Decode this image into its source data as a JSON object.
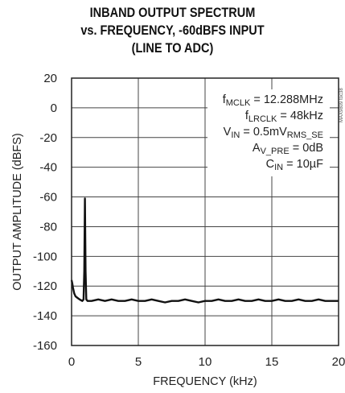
{
  "chart_data": {
    "type": "line",
    "title_lines": [
      "INBAND OUTPUT SPECTRUM",
      "vs. FREQUENCY, -60dBFS INPUT",
      "(LINE TO ADC)"
    ],
    "xlabel": "FREQUENCY (kHz)",
    "ylabel": "OUTPUT AMPLITUDE (dBFS)",
    "xlim": [
      0,
      20
    ],
    "ylim": [
      -160,
      20
    ],
    "xticks": [
      "0",
      "5",
      "10",
      "15",
      "20"
    ],
    "yticks": [
      "20",
      "0",
      "-20",
      "-40",
      "-60",
      "-80",
      "-100",
      "-120",
      "-140",
      "-160"
    ],
    "grid": true,
    "legend": "none",
    "side_code": "MAX9809 toc38",
    "annotations": [
      {
        "main": "f",
        "sub": "MCLK",
        "rest": " = 12.288MHz"
      },
      {
        "main": "f",
        "sub": "LRCLK",
        "rest": " = 48kHz"
      },
      {
        "main": "V",
        "sub": "IN",
        "rest": " = 0.5mV",
        "sub2": "RMS_SE"
      },
      {
        "main": "A",
        "sub": "V_PRE",
        "rest": " = 0dB"
      },
      {
        "main": "C",
        "sub": "IN",
        "rest": " = 10µF"
      }
    ],
    "series": [
      {
        "x": [
          0.0,
          0.05,
          0.1,
          0.2,
          0.3,
          0.45,
          0.6,
          0.8,
          0.9,
          0.95,
          1.0,
          1.05,
          1.1,
          1.2,
          1.5,
          2,
          2.5,
          3,
          3.5,
          4,
          4.5,
          5,
          5.5,
          6,
          6.5,
          7,
          7.5,
          8,
          8.5,
          9,
          9.5,
          10,
          10.5,
          11,
          11.5,
          12,
          12.5,
          13,
          13.5,
          14,
          14.5,
          15,
          15.5,
          16,
          16.5,
          17,
          17.5,
          18,
          18.5,
          19,
          19.5,
          20
        ],
        "y": [
          -116,
          -118,
          -121,
          -125,
          -127,
          -128,
          -129,
          -130,
          -129,
          -110,
          -61,
          -110,
          -129,
          -130,
          -130,
          -129,
          -130,
          -129,
          -130,
          -130,
          -129,
          -130,
          -130,
          -129,
          -130,
          -131,
          -130,
          -130,
          -129,
          -130,
          -131,
          -130,
          -130,
          -129,
          -130,
          -130,
          -129,
          -130,
          -130,
          -129,
          -130,
          -130,
          -129,
          -130,
          -130,
          -129,
          -130,
          -130,
          -129,
          -130,
          -130,
          -130
        ]
      }
    ]
  }
}
